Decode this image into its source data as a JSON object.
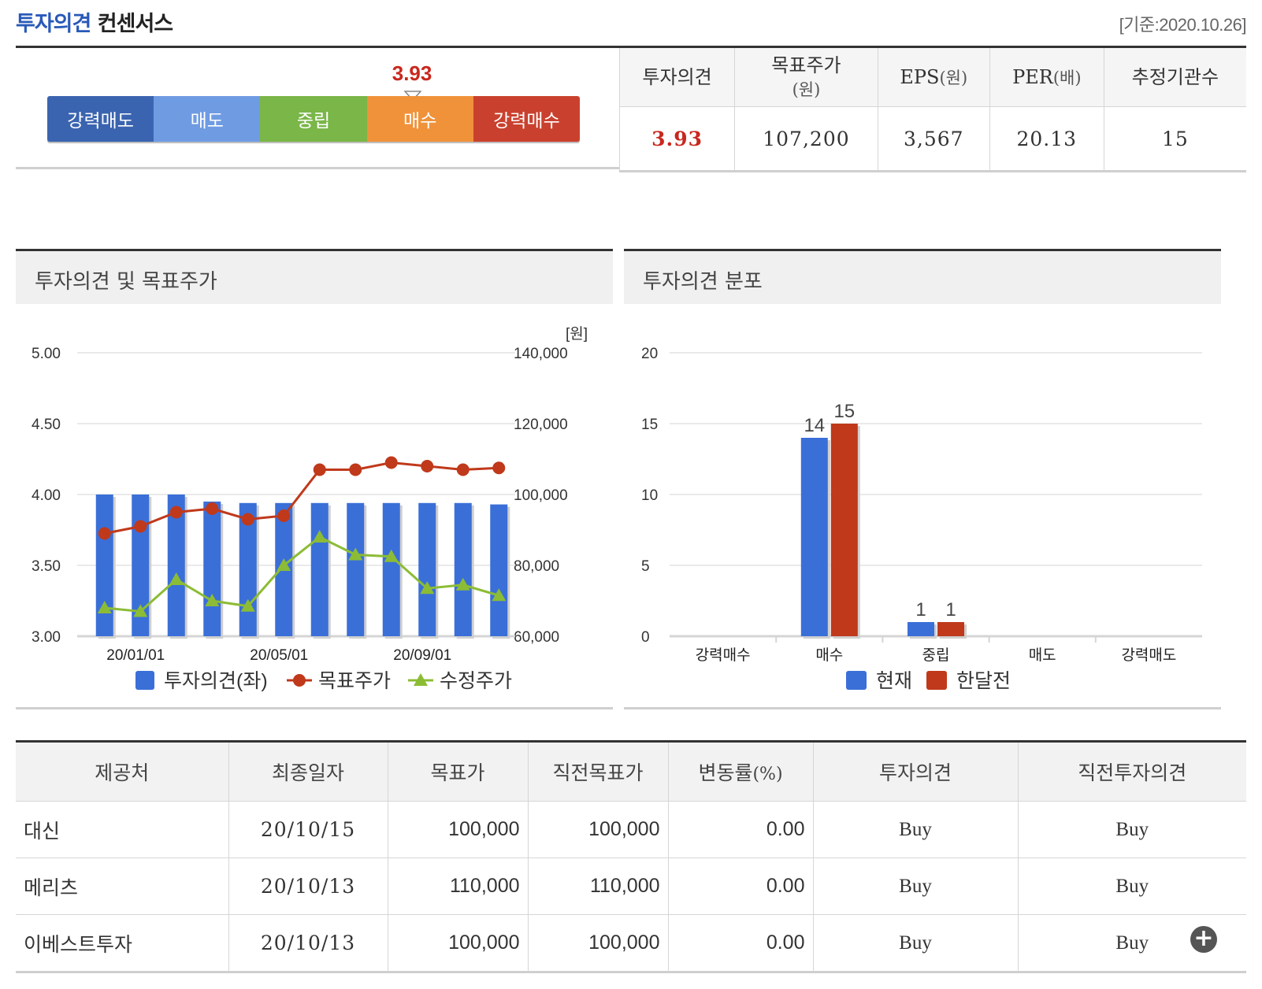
{
  "header": {
    "title_blue": "투자의견",
    "title_dark": "컨센서스",
    "date": "[기준:2020.10.26]"
  },
  "scale": {
    "value": "3.93",
    "marker_position": 3.93,
    "segments": [
      {
        "label": "강력매도",
        "color": "#3b64b0"
      },
      {
        "label": "매도",
        "color": "#6f9be3"
      },
      {
        "label": "중립",
        "color": "#7ab648"
      },
      {
        "label": "매수",
        "color": "#f0923a"
      },
      {
        "label": "강력매수",
        "color": "#c9412e"
      }
    ]
  },
  "summary": {
    "headers": [
      "투자의견",
      "목표주가",
      "(원)",
      "EPS",
      "(원)",
      "PER",
      "(배)",
      "추정기관수"
    ],
    "values": [
      "3.93",
      "107,200",
      "3,567",
      "20.13",
      "15"
    ]
  },
  "panels": {
    "left_title": "투자의견 및 목표주가",
    "right_title": "투자의견 분포"
  },
  "chart_data": [
    {
      "type": "bar+line",
      "unit_label": "[원]",
      "left_axis": {
        "min": 3.0,
        "max": 5.0,
        "ticks": [
          "5.00",
          "4.50",
          "4.00",
          "3.50",
          "3.00"
        ]
      },
      "right_axis": {
        "min": 60000,
        "max": 140000,
        "ticks": [
          "140,000",
          "120,000",
          "100,000",
          "80,000",
          "60,000"
        ]
      },
      "x_tick_labels": [
        "20/01/01",
        "20/05/01",
        "20/09/01"
      ],
      "series": [
        {
          "name": "투자의견(좌)",
          "kind": "bar",
          "axis": "left",
          "color": "#3a6fd8",
          "values": [
            4.0,
            4.0,
            4.0,
            3.95,
            3.94,
            3.94,
            3.94,
            3.94,
            3.94,
            3.94,
            3.94,
            3.93
          ]
        },
        {
          "name": "목표주가",
          "kind": "line",
          "axis": "right",
          "color": "#c0391b",
          "values": [
            89000,
            91000,
            95000,
            96000,
            93000,
            94000,
            107000,
            107000,
            109000,
            108000,
            107000,
            107500
          ]
        },
        {
          "name": "수정주가",
          "kind": "line",
          "axis": "right",
          "color": "#8cbc35",
          "values": [
            68000,
            67000,
            76000,
            70000,
            68500,
            80000,
            88000,
            83000,
            82500,
            73500,
            74500,
            71500
          ]
        }
      ]
    },
    {
      "type": "bar",
      "y_axis": {
        "min": 0,
        "max": 20,
        "ticks": [
          "20",
          "15",
          "10",
          "5",
          "0"
        ]
      },
      "categories": [
        "강력매수",
        "매수",
        "중립",
        "매도",
        "강력매도"
      ],
      "series": [
        {
          "name": "현재",
          "color": "#3a6fd8",
          "values": [
            0,
            14,
            1,
            0,
            0
          ]
        },
        {
          "name": "한달전",
          "color": "#c0391b",
          "values": [
            0,
            15,
            1,
            0,
            0
          ]
        }
      ]
    }
  ],
  "brokers": {
    "headers": [
      "제공처",
      "최종일자",
      "목표가",
      "직전목표가",
      "변동률",
      "(%)",
      "투자의견",
      "직전투자의견"
    ],
    "rows": [
      {
        "name": "대신",
        "date": "20/10/15",
        "target": "100,000",
        "prev_target": "100,000",
        "change": "0.00",
        "opinion": "Buy",
        "prev_opinion": "Buy"
      },
      {
        "name": "메리츠",
        "date": "20/10/13",
        "target": "110,000",
        "prev_target": "110,000",
        "change": "0.00",
        "opinion": "Buy",
        "prev_opinion": "Buy"
      },
      {
        "name": "이베스트투자",
        "date": "20/10/13",
        "target": "100,000",
        "prev_target": "100,000",
        "change": "0.00",
        "opinion": "Buy",
        "prev_opinion": "Buy"
      }
    ],
    "more_label": "+"
  }
}
